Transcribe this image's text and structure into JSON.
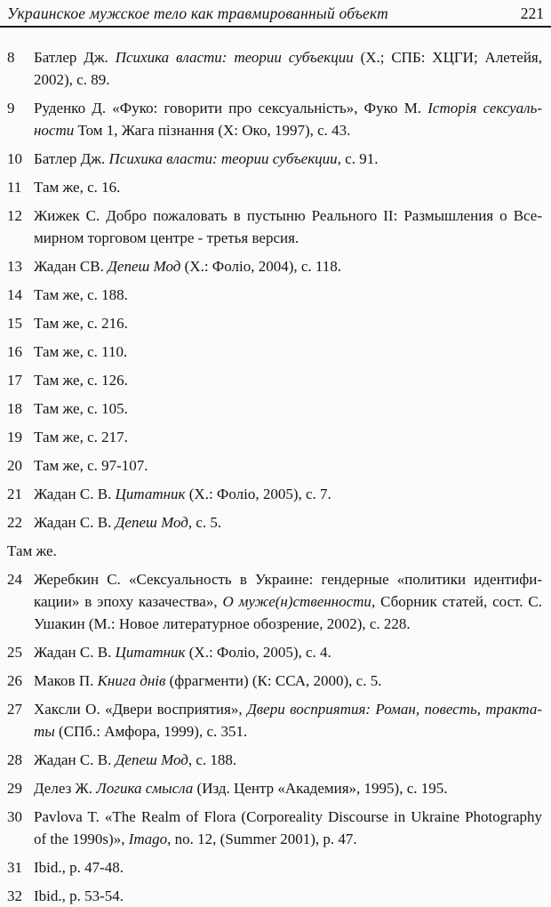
{
  "header": {
    "title": "Украинское мужское тело как травмированный объект",
    "page_number": "221"
  },
  "notes": {
    "items": [
      {
        "num": "8",
        "segments": [
          {
            "t": "Батлер Дж. ",
            "i": false
          },
          {
            "t": "Психика власти: теории субъекции",
            "i": true
          },
          {
            "t": " (Х.; СПБ: ХЦГИ; Алетейя, 2002), с. 89.",
            "i": false
          }
        ]
      },
      {
        "num": "9",
        "segments": [
          {
            "t": "Руденко Д. «Фуко: говорити про сексуальність», Фуко М. ",
            "i": false
          },
          {
            "t": "Історія сексуаль­ности",
            "i": true
          },
          {
            "t": " Том 1, Жага пізнання (Х: Око, 1997), с. 43.",
            "i": false
          }
        ]
      },
      {
        "num": "10",
        "segments": [
          {
            "t": "Батлер Дж. ",
            "i": false
          },
          {
            "t": "Психика власти: теории субъекции",
            "i": true
          },
          {
            "t": ", с. 91.",
            "i": false
          }
        ]
      },
      {
        "num": "11",
        "segments": [
          {
            "t": "Там же, с. 16.",
            "i": false
          }
        ]
      },
      {
        "num": "12",
        "segments": [
          {
            "t": "Жижек С. Добро пожаловать в пустыню Реального II: Размышления о Все­мирном торговом центре - третья версия.",
            "i": false
          }
        ]
      },
      {
        "num": "13",
        "segments": [
          {
            "t": "Жадан СВ. ",
            "i": false
          },
          {
            "t": "Депеш Мод",
            "i": true
          },
          {
            "t": " (Х.: Фоліо, 2004), с. 118.",
            "i": false
          }
        ]
      },
      {
        "num": "14",
        "segments": [
          {
            "t": "Там же, с. 188.",
            "i": false
          }
        ]
      },
      {
        "num": "15",
        "segments": [
          {
            "t": "Там же, с. 216.",
            "i": false
          }
        ]
      },
      {
        "num": "16",
        "segments": [
          {
            "t": "Там же, с. 110.",
            "i": false
          }
        ]
      },
      {
        "num": "17",
        "segments": [
          {
            "t": "Там же, с. 126.",
            "i": false
          }
        ]
      },
      {
        "num": "18",
        "segments": [
          {
            "t": "Там же, с. 105.",
            "i": false
          }
        ]
      },
      {
        "num": "19",
        "segments": [
          {
            "t": "Там же, с. 217.",
            "i": false
          }
        ]
      },
      {
        "num": "20",
        "segments": [
          {
            "t": "Там же, с. 97-107.",
            "i": false
          }
        ]
      },
      {
        "num": "21",
        "segments": [
          {
            "t": "Жадан С. В. ",
            "i": false
          },
          {
            "t": "Цитатник",
            "i": true
          },
          {
            "t": " (Х.: Фоліо, 2005), с. 7.",
            "i": false
          }
        ]
      },
      {
        "num": "22",
        "segments": [
          {
            "t": "Жадан С. В. ",
            "i": false
          },
          {
            "t": "Депеш Мод",
            "i": true
          },
          {
            "t": ", с. 5.",
            "i": false
          }
        ]
      },
      {
        "num": "",
        "segments": [
          {
            "t": "Там же.",
            "i": false
          }
        ]
      },
      {
        "num": "24",
        "segments": [
          {
            "t": "Жеребкин С. «Сексуальность в Украине: гендерные «политики идентифи­кации» в эпоху казачества», ",
            "i": false
          },
          {
            "t": "О муже(н)ственности",
            "i": true
          },
          {
            "t": ", Сборник статей, сост. С. Ушакин (М.: Новое литературное обозрение, 2002), с. 228.",
            "i": false
          }
        ]
      },
      {
        "num": "25",
        "segments": [
          {
            "t": "Жадан С. В. ",
            "i": false
          },
          {
            "t": "Цитатник",
            "i": true
          },
          {
            "t": " (Х.: Фоліо, 2005), с. 4.",
            "i": false
          }
        ]
      },
      {
        "num": "26",
        "segments": [
          {
            "t": "Маков П. ",
            "i": false
          },
          {
            "t": "Книга днів",
            "i": true
          },
          {
            "t": " (фрагменти) (К: ССА, 2000), с. 5.",
            "i": false
          }
        ]
      },
      {
        "num": "27",
        "segments": [
          {
            "t": "Хаксли О. «Двери восприятия», ",
            "i": false
          },
          {
            "t": "Двери восприятия: Роман, повесть, тракта­ты",
            "i": true
          },
          {
            "t": " (СПб.: Амфора, 1999), с. 351.",
            "i": false
          }
        ]
      },
      {
        "num": "28",
        "segments": [
          {
            "t": "Жадан С. В. ",
            "i": false
          },
          {
            "t": "Депеш Мод",
            "i": true
          },
          {
            "t": ", с. 188.",
            "i": false
          }
        ]
      },
      {
        "num": "29",
        "segments": [
          {
            "t": "Делез Ж. ",
            "i": false
          },
          {
            "t": "Логика смысла",
            "i": true
          },
          {
            "t": " (Изд. Центр «Академия», 1995), с. 195.",
            "i": false
          }
        ]
      },
      {
        "num": "30",
        "segments": [
          {
            "t": "Pavlova T. «The Realm of Flora (Corporeality Discourse in Ukraine Photography of the 1990s)», ",
            "i": false
          },
          {
            "t": "Imago",
            "i": true
          },
          {
            "t": ", no. 12, (Summer 2001), p. 47.",
            "i": false
          }
        ]
      },
      {
        "num": "31",
        "segments": [
          {
            "t": "Ibid., p. 47-48.",
            "i": false
          }
        ]
      },
      {
        "num": "32",
        "segments": [
          {
            "t": "Ibid., p. 53-54.",
            "i": false
          }
        ]
      }
    ]
  }
}
